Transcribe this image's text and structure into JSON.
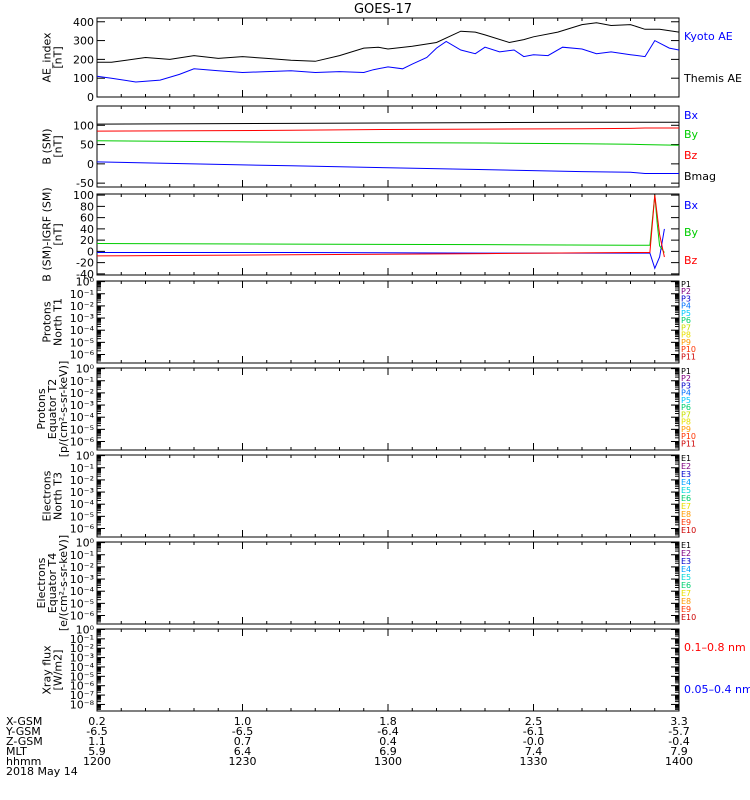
{
  "title": "GOES-17",
  "chart_data": [
    {
      "type": "line",
      "ylabel": [
        "AE_index",
        "[nT]"
      ],
      "ylim": [
        0,
        420
      ],
      "yticks": [
        "0",
        "100",
        "200",
        "300",
        "400"
      ],
      "ytick_values": [
        0,
        100,
        200,
        300,
        400
      ],
      "series": [
        {
          "name": "Kyoto AE",
          "color": "#0000ff",
          "x": [
            0,
            3,
            8,
            13,
            17,
            20,
            25,
            30,
            35,
            40,
            45,
            50,
            55,
            57,
            60,
            63,
            65,
            68,
            70,
            72,
            75,
            78,
            80,
            83,
            86,
            88,
            90,
            93,
            96,
            100,
            103,
            106,
            110,
            113,
            115,
            118,
            120
          ],
          "values": [
            110,
            100,
            80,
            90,
            120,
            150,
            140,
            130,
            135,
            140,
            130,
            135,
            130,
            145,
            160,
            150,
            175,
            210,
            260,
            295,
            250,
            230,
            265,
            240,
            250,
            215,
            225,
            220,
            265,
            255,
            230,
            240,
            225,
            215,
            300,
            260,
            250
          ]
        },
        {
          "name": "Themis AE",
          "color": "#000000",
          "x": [
            0,
            3,
            6,
            10,
            15,
            20,
            25,
            30,
            35,
            40,
            45,
            50,
            55,
            58,
            60,
            65,
            70,
            75,
            78,
            80,
            85,
            88,
            90,
            95,
            100,
            103,
            106,
            110,
            113,
            116,
            120
          ],
          "values": [
            185,
            185,
            195,
            210,
            200,
            220,
            205,
            215,
            205,
            195,
            190,
            220,
            260,
            265,
            255,
            270,
            290,
            350,
            345,
            330,
            290,
            305,
            320,
            345,
            385,
            395,
            380,
            385,
            360,
            360,
            345
          ]
        }
      ]
    },
    {
      "type": "line",
      "ylabel": [
        "B (SM)",
        "[nT]"
      ],
      "ylim": [
        -60,
        150
      ],
      "yticks": [
        "-50",
        "0",
        "50",
        "100"
      ],
      "ytick_values": [
        -50,
        0,
        50,
        100
      ],
      "series": [
        {
          "name": "Bx",
          "color": "#0000ff",
          "x": [
            0,
            20,
            40,
            60,
            80,
            100,
            110,
            113,
            120
          ],
          "values": [
            5,
            0,
            -5,
            -10,
            -15,
            -20,
            -22,
            -25,
            -25
          ]
        },
        {
          "name": "By",
          "color": "#00cc00",
          "x": [
            0,
            20,
            40,
            60,
            80,
            100,
            110,
            113,
            120
          ],
          "values": [
            60,
            58,
            56,
            55,
            54,
            52,
            51,
            50,
            48
          ]
        },
        {
          "name": "Bz",
          "color": "#ff0000",
          "x": [
            0,
            20,
            40,
            60,
            80,
            100,
            110,
            113,
            120
          ],
          "values": [
            85,
            86,
            87,
            89,
            90,
            91,
            92,
            93,
            93
          ]
        },
        {
          "name": "Bmag",
          "color": "#000000",
          "x": [
            0,
            20,
            40,
            60,
            80,
            100,
            110,
            113,
            120
          ],
          "values": [
            103,
            104,
            105,
            106,
            107,
            108,
            108,
            108,
            108
          ]
        }
      ]
    },
    {
      "type": "line",
      "ylabel": [
        "B (SM)-IGRF (SM)",
        "[nT]"
      ],
      "ylim": [
        -42,
        102
      ],
      "yticks": [
        "-40",
        "-20",
        "0",
        "20",
        "40",
        "60",
        "80",
        "100"
      ],
      "ytick_values": [
        -40,
        -20,
        0,
        20,
        40,
        60,
        80,
        100
      ],
      "series": [
        {
          "name": "Bx",
          "color": "#0000ff",
          "x": [
            0,
            40,
            80,
            110,
            114,
            115,
            116,
            117
          ],
          "values": [
            -2,
            -2,
            -3,
            -3,
            -3,
            -30,
            -10,
            40
          ]
        },
        {
          "name": "By",
          "color": "#00cc00",
          "x": [
            0,
            40,
            80,
            110,
            114,
            115,
            115.5,
            116,
            117
          ],
          "values": [
            14,
            13,
            12,
            11,
            11,
            100,
            50,
            10,
            -2
          ]
        },
        {
          "name": "Bz",
          "color": "#ff0000",
          "x": [
            0,
            40,
            80,
            110,
            114,
            115,
            116,
            117
          ],
          "values": [
            -8,
            -6,
            -4,
            -2,
            -2,
            100,
            30,
            -10
          ]
        }
      ]
    },
    {
      "type": "line",
      "ylabel": [
        "Protons",
        "North T1"
      ],
      "log": true,
      "yticks": [
        "10⁻⁶",
        "10⁻⁵",
        "10⁻⁴",
        "10⁻³",
        "10⁻²",
        "10⁻¹",
        "10⁰"
      ],
      "ytick_values": [
        -6,
        -5,
        -4,
        -3,
        -2,
        -1,
        0
      ],
      "ylim_exp": [
        -6.7,
        0.05
      ],
      "legend": [
        {
          "name": "P1",
          "color": "#000000"
        },
        {
          "name": "P2",
          "color": "#800080"
        },
        {
          "name": "P3",
          "color": "#0000cc"
        },
        {
          "name": "P4",
          "color": "#0070ff"
        },
        {
          "name": "P5",
          "color": "#00c8ff"
        },
        {
          "name": "P6",
          "color": "#00d070"
        },
        {
          "name": "P7",
          "color": "#c8e000"
        },
        {
          "name": "P8",
          "color": "#e8e000"
        },
        {
          "name": "P9",
          "color": "#ff9900"
        },
        {
          "name": "P10",
          "color": "#ff3300"
        },
        {
          "name": "P11",
          "color": "#cc0000"
        }
      ]
    },
    {
      "type": "line",
      "ylabel": [
        "Protons",
        "Equator T2",
        "[p/(cm²-s-sr-keV)]"
      ],
      "log": true,
      "yticks": [
        "10⁻⁶",
        "10⁻⁵",
        "10⁻⁴",
        "10⁻³",
        "10⁻²",
        "10⁻¹",
        "10⁰"
      ],
      "ytick_values": [
        -6,
        -5,
        -4,
        -3,
        -2,
        -1,
        0
      ],
      "ylim_exp": [
        -6.7,
        0.05
      ],
      "legend": [
        {
          "name": "P1",
          "color": "#000000"
        },
        {
          "name": "P2",
          "color": "#800080"
        },
        {
          "name": "P3",
          "color": "#0000cc"
        },
        {
          "name": "P4",
          "color": "#0070ff"
        },
        {
          "name": "P5",
          "color": "#00c8ff"
        },
        {
          "name": "P6",
          "color": "#00d070"
        },
        {
          "name": "P7",
          "color": "#c8e000"
        },
        {
          "name": "P8",
          "color": "#e8e000"
        },
        {
          "name": "P9",
          "color": "#ff9900"
        },
        {
          "name": "P10",
          "color": "#ff3300"
        },
        {
          "name": "P11",
          "color": "#cc0000"
        }
      ]
    },
    {
      "type": "line",
      "ylabel": [
        "Electrons",
        "North T3"
      ],
      "log": true,
      "yticks": [
        "10⁻⁶",
        "10⁻⁵",
        "10⁻⁴",
        "10⁻³",
        "10⁻²",
        "10⁻¹",
        "10⁰"
      ],
      "ytick_values": [
        -6,
        -5,
        -4,
        -3,
        -2,
        -1,
        0
      ],
      "ylim_exp": [
        -6.7,
        0.05
      ],
      "legend": [
        {
          "name": "E1",
          "color": "#000000"
        },
        {
          "name": "E2",
          "color": "#800080"
        },
        {
          "name": "E3",
          "color": "#0000cc"
        },
        {
          "name": "E4",
          "color": "#00a0ff"
        },
        {
          "name": "E5",
          "color": "#00d8d8"
        },
        {
          "name": "E6",
          "color": "#00d070"
        },
        {
          "name": "E7",
          "color": "#e8e000"
        },
        {
          "name": "E8",
          "color": "#ff9900"
        },
        {
          "name": "E9",
          "color": "#ff3300"
        },
        {
          "name": "E10",
          "color": "#cc0000"
        }
      ]
    },
    {
      "type": "line",
      "ylabel": [
        "Electrons",
        "Equator T4",
        "[e/(cm²-s-sr-keV)]"
      ],
      "log": true,
      "yticks": [
        "10⁻⁶",
        "10⁻⁵",
        "10⁻⁴",
        "10⁻³",
        "10⁻²",
        "10⁻¹",
        "10⁰"
      ],
      "ytick_values": [
        -6,
        -5,
        -4,
        -3,
        -2,
        -1,
        0
      ],
      "ylim_exp": [
        -6.7,
        0.05
      ],
      "legend": [
        {
          "name": "E1",
          "color": "#000000"
        },
        {
          "name": "E2",
          "color": "#800080"
        },
        {
          "name": "E3",
          "color": "#0000cc"
        },
        {
          "name": "E4",
          "color": "#00a0ff"
        },
        {
          "name": "E5",
          "color": "#00d8d8"
        },
        {
          "name": "E6",
          "color": "#00d070"
        },
        {
          "name": "E7",
          "color": "#e8e000"
        },
        {
          "name": "E8",
          "color": "#ff9900"
        },
        {
          "name": "E9",
          "color": "#ff3300"
        },
        {
          "name": "E10",
          "color": "#cc0000"
        }
      ]
    },
    {
      "type": "line",
      "ylabel": [
        "Xray flux",
        "[W/m2]"
      ],
      "log": true,
      "yticks": [
        "10⁻⁸",
        "10⁻⁷",
        "10⁻⁶",
        "10⁻⁵",
        "10⁻⁴",
        "10⁻³",
        "10⁻²",
        "10⁻¹",
        "10⁰"
      ],
      "ytick_values": [
        -8,
        -7,
        -6,
        -5,
        -4,
        -3,
        -2,
        -1,
        0
      ],
      "ylim_exp": [
        -8.7,
        0.05
      ],
      "legend": [
        {
          "name": "0.1–0.8 nm",
          "color": "#ff0000"
        },
        {
          "name": "0.05–0.4 nm",
          "color": "#0000ff"
        }
      ]
    }
  ],
  "x_axis": {
    "range_minutes": [
      0,
      120
    ],
    "row_labels": [
      "X-GSM",
      "Y-GSM",
      "Z-GSM",
      "MLT",
      "hhmm",
      "2018 May 14"
    ],
    "columns": [
      {
        "minute": 0,
        "values": [
          "0.2",
          "-6.5",
          "1.1",
          "5.9",
          "1200"
        ]
      },
      {
        "minute": 30,
        "values": [
          "1.0",
          "-6.5",
          "0.7",
          "6.4",
          "1230"
        ]
      },
      {
        "minute": 60,
        "values": [
          "1.8",
          "-6.4",
          "0.4",
          "6.9",
          "1300"
        ]
      },
      {
        "minute": 90,
        "values": [
          "2.5",
          "-6.1",
          "-0.0",
          "7.4",
          "1330"
        ]
      },
      {
        "minute": 120,
        "values": [
          "3.3",
          "-5.7",
          "-0.4",
          "7.9",
          "1400"
        ]
      }
    ]
  }
}
